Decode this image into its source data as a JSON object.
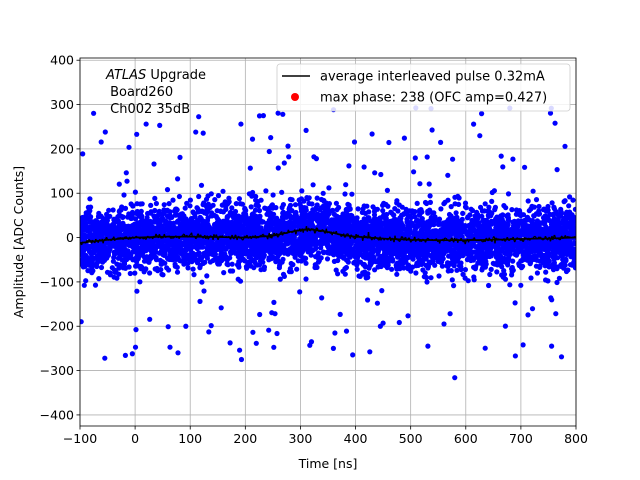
{
  "chart_data": {
    "type": "scatter",
    "xlabel": "Time [ns]",
    "ylabel": "Amplitude [ADC Counts]",
    "xlim": [
      -100,
      800
    ],
    "ylim": [
      -425,
      405
    ],
    "xticks": [
      -100,
      0,
      100,
      200,
      300,
      400,
      500,
      600,
      700,
      800
    ],
    "yticks": [
      -400,
      -300,
      -200,
      -100,
      0,
      100,
      200,
      300,
      400
    ],
    "grid": true,
    "legend_position": "top-right",
    "annotation": {
      "line1_italic": "ATLAS",
      "line1_rest": " Upgrade",
      "line2": " Board260",
      "line3": " Ch002 35dB"
    },
    "series": [
      {
        "name": "average interleaved pulse 0.32mA",
        "kind": "line",
        "color": "#000000",
        "x": [
          -100,
          -50,
          0,
          50,
          100,
          150,
          200,
          250,
          280,
          300,
          320,
          340,
          360,
          380,
          400,
          450,
          500,
          550,
          600,
          650,
          700,
          750,
          800
        ],
        "y": [
          -12,
          -5,
          0,
          2,
          2,
          1,
          0,
          4,
          12,
          17,
          18,
          15,
          10,
          5,
          2,
          -2,
          -5,
          -6,
          -6,
          -5,
          -3,
          -2,
          0
        ]
      },
      {
        "name": "max phase: 238 (OFC amp=0.427)",
        "kind": "scatter",
        "color": "#ff0000",
        "x": [
          238
        ],
        "y": [
          0
        ]
      },
      {
        "kind": "scatter",
        "color": "#0000ff",
        "x_range": [
          -100,
          800
        ],
        "core_sigma": 35,
        "tail_range": [
          -275,
          295
        ],
        "outliers": [
          [
            -55,
            -272
          ],
          [
            20,
            256
          ],
          [
            110,
            238
          ],
          [
            192,
            256
          ],
          [
            268,
            278
          ],
          [
            537,
            291
          ],
          [
            762,
            258
          ],
          [
            92,
            -200
          ],
          [
            -5,
            -262
          ],
          [
            193,
            -275
          ],
          [
            580,
            -316
          ],
          [
            690,
            -267
          ],
          [
            320,
            -235
          ],
          [
            445,
            -200
          ]
        ]
      }
    ]
  }
}
